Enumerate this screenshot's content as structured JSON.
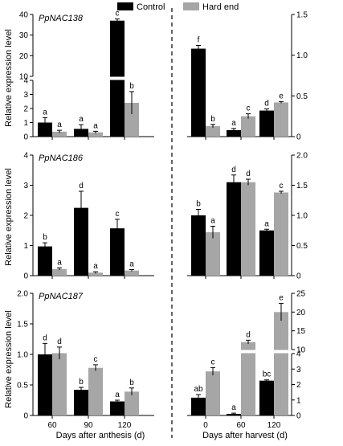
{
  "legend": [
    {
      "name": "Control",
      "color": "#000000"
    },
    {
      "name": "Hard end",
      "color": "#a6a6a6"
    }
  ],
  "chart_data": [
    {
      "type": "bar",
      "panel": "row1-left",
      "gene": "PpNAC138",
      "ylabel": "Relative expression level",
      "xlabel": "",
      "categories": [
        "60",
        "90",
        "120"
      ],
      "axis_break": {
        "lower": [
          0,
          4
        ],
        "upper": [
          10,
          40
        ],
        "lower_ticks": [
          "0",
          "1",
          "2",
          "3",
          "4"
        ],
        "upper_ticks": [
          "10",
          "20",
          "30",
          "40"
        ]
      },
      "series": [
        {
          "name": "Control",
          "values": [
            1.0,
            0.55,
            37
          ],
          "errors": [
            0.35,
            0.3,
            0.8
          ],
          "letters": [
            "a",
            "a",
            "c"
          ]
        },
        {
          "name": "Hard end",
          "values": [
            0.35,
            0.3,
            2.4
          ],
          "errors": [
            0.1,
            0.08,
            0.8
          ],
          "letters": [
            "a",
            "a",
            "b"
          ]
        }
      ]
    },
    {
      "type": "bar",
      "panel": "row1-right",
      "ylabel": "",
      "xlabel": "",
      "categories": [
        "0",
        "60",
        "120"
      ],
      "ylim": [
        0,
        1.5
      ],
      "yticks": [
        "0",
        "0.5",
        "1.0",
        "1.5"
      ],
      "series": [
        {
          "name": "Control",
          "values": [
            1.08,
            0.08,
            0.32
          ],
          "errors": [
            0.04,
            0.02,
            0.02
          ],
          "letters": [
            "f",
            "a",
            "d"
          ]
        },
        {
          "name": "Hard end",
          "values": [
            0.13,
            0.25,
            0.42
          ],
          "errors": [
            0.02,
            0.03,
            0.01
          ],
          "letters": [
            "b",
            "c",
            "e"
          ]
        }
      ]
    },
    {
      "type": "bar",
      "panel": "row2-left",
      "gene": "PpNAC186",
      "ylabel": "Relative expression level",
      "xlabel": "",
      "categories": [
        "60",
        "90",
        "120"
      ],
      "ylim": [
        0,
        4
      ],
      "yticks": [
        "0",
        "1",
        "2",
        "3",
        "4"
      ],
      "series": [
        {
          "name": "Control",
          "values": [
            0.97,
            2.25,
            1.57
          ],
          "errors": [
            0.12,
            0.55,
            0.3
          ],
          "letters": [
            "b",
            "d",
            "c"
          ]
        },
        {
          "name": "Hard end",
          "values": [
            0.22,
            0.1,
            0.17
          ],
          "errors": [
            0.04,
            0.03,
            0.03
          ],
          "letters": [
            "a",
            "a",
            "a"
          ]
        }
      ]
    },
    {
      "type": "bar",
      "panel": "row2-right",
      "ylabel": "",
      "xlabel": "",
      "categories": [
        "0",
        "60",
        "120"
      ],
      "ylim": [
        0,
        2.0
      ],
      "yticks": [
        "0",
        "0.5",
        "1.0",
        "1.5",
        "2.0"
      ],
      "series": [
        {
          "name": "Control",
          "values": [
            1.0,
            1.55,
            0.75
          ],
          "errors": [
            0.1,
            0.12,
            0.02
          ],
          "letters": [
            "b",
            "d",
            "a"
          ]
        },
        {
          "name": "Hard end",
          "values": [
            0.72,
            1.55,
            1.38
          ],
          "errors": [
            0.1,
            0.05,
            0.02
          ],
          "letters": [
            "a",
            "d",
            "c"
          ]
        }
      ]
    },
    {
      "type": "bar",
      "panel": "row3-left",
      "gene": "PpNAC187",
      "ylabel": "Relative expression level",
      "xlabel": "Days after anthesis (d)",
      "categories": [
        "60",
        "90",
        "120"
      ],
      "ylim": [
        0,
        2.0
      ],
      "yticks": [
        "0",
        "0.5",
        "1.0",
        "1.5",
        "2.0"
      ],
      "series": [
        {
          "name": "Control",
          "values": [
            1.0,
            0.42,
            0.23
          ],
          "errors": [
            0.18,
            0.04,
            0.02
          ],
          "letters": [
            "d",
            "b",
            "a"
          ]
        },
        {
          "name": "Hard end",
          "values": [
            1.02,
            0.78,
            0.39
          ],
          "errors": [
            0.1,
            0.05,
            0.06
          ],
          "letters": [
            "d",
            "c",
            "b"
          ]
        }
      ]
    },
    {
      "type": "bar",
      "panel": "row3-right",
      "ylabel": "",
      "xlabel": "Days after harvest (d)",
      "categories": [
        "0",
        "60",
        "120"
      ],
      "axis_break": {
        "lower": [
          0,
          4
        ],
        "upper": [
          10,
          25
        ],
        "lower_ticks": [
          "0",
          "1",
          "2",
          "3",
          "4"
        ],
        "upper_ticks": [
          "10",
          "15",
          "20",
          "25"
        ]
      },
      "series": [
        {
          "name": "Control",
          "values": [
            1.15,
            0.1,
            2.25
          ],
          "errors": [
            0.2,
            0.05,
            0.05
          ],
          "letters": [
            "ab",
            "a",
            "bc"
          ]
        },
        {
          "name": "Hard end",
          "values": [
            2.85,
            12.0,
            20.0
          ],
          "errors": [
            0.25,
            0.5,
            2.3
          ],
          "letters": [
            "c",
            "d",
            "e"
          ]
        }
      ]
    }
  ]
}
